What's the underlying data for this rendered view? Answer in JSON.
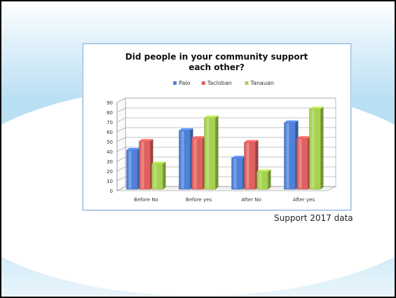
{
  "chart_data": {
    "type": "bar",
    "title_line1": "Did people in your community support",
    "title_line2": "each other?",
    "categories": [
      "Before No",
      "Before yes",
      "After No",
      "After yes"
    ],
    "series": [
      {
        "name": "Palo",
        "values": [
          40,
          60,
          32,
          68
        ],
        "color": "#4f81d9"
      },
      {
        "name": "Tacloban",
        "values": [
          49,
          52,
          48,
          52
        ],
        "color": "#e06060"
      },
      {
        "name": "Tanauan",
        "values": [
          26,
          73,
          18,
          82
        ],
        "color": "#a6d24f"
      }
    ],
    "yticks": [
      "0",
      "10",
      "20",
      "30",
      "40",
      "50",
      "60",
      "70",
      "80",
      "90"
    ],
    "ylim": [
      0,
      90
    ],
    "grid": true,
    "legend_position": "top"
  },
  "caption": "Support 2017 data"
}
